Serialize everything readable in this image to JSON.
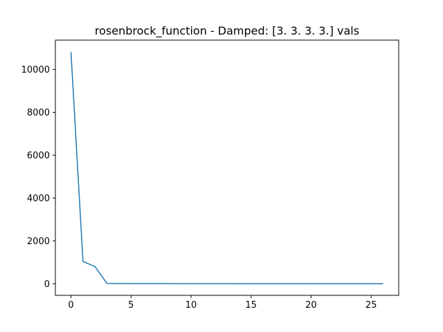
{
  "chart_data": {
    "type": "line",
    "title": "rosenbrock_function - Damped: [3. 3. 3. 3.] vals",
    "xlabel": "",
    "ylabel": "",
    "xlim": [
      -1.3,
      27.3
    ],
    "ylim": [
      -540,
      11370
    ],
    "xticks": [
      0,
      5,
      10,
      15,
      20,
      25
    ],
    "yticks": [
      0,
      2000,
      4000,
      6000,
      8000,
      10000
    ],
    "grid": false,
    "legend": "none",
    "series": [
      {
        "color": "#1f77b4",
        "x": [
          0,
          1,
          2,
          3,
          4,
          5,
          6,
          7,
          8,
          9,
          10,
          11,
          12,
          13,
          14,
          15,
          16,
          17,
          18,
          19,
          20,
          21,
          22,
          23,
          24,
          25,
          26
        ],
        "y": [
          10808,
          1040,
          800,
          15,
          12,
          10,
          9,
          8,
          7,
          6,
          5,
          4,
          3,
          3,
          2,
          2,
          1,
          1,
          1,
          1,
          0.5,
          0.5,
          0.4,
          0.3,
          0.2,
          0.1,
          0.1
        ]
      }
    ]
  }
}
